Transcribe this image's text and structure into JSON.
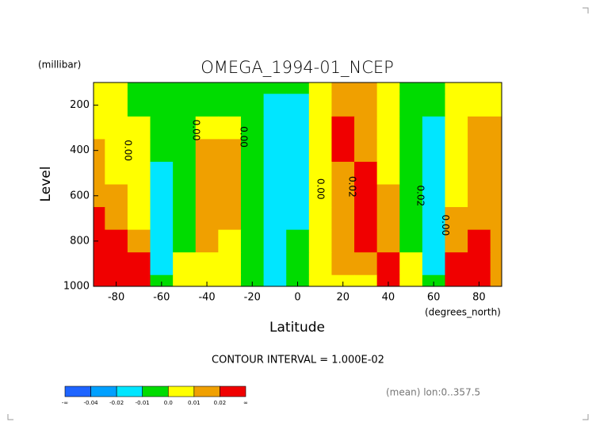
{
  "chart_data": {
    "type": "contour",
    "title": "OMEGA_1994-01_NCEP",
    "y_unit": "(millibar)",
    "ylabel": "Level",
    "xlabel": "Latitude",
    "x_unit": "(degrees_north)",
    "xlim": [
      -90,
      90
    ],
    "xticks": [
      -80,
      -60,
      -40,
      -20,
      0,
      20,
      40,
      60,
      80
    ],
    "ylim": [
      1000,
      100
    ],
    "yticks": [
      200,
      400,
      600,
      800,
      1000
    ],
    "x": [
      -90,
      -80,
      -70,
      -60,
      -50,
      -40,
      -30,
      -20,
      -10,
      0,
      10,
      20,
      30,
      40,
      50,
      60,
      70,
      80,
      90
    ],
    "y": [
      100,
      200,
      300,
      400,
      500,
      600,
      700,
      800,
      900,
      1000
    ],
    "z": [
      [
        0.005,
        0.005,
        -0.005,
        -0.005,
        -0.005,
        -0.005,
        -0.005,
        -0.005,
        -0.005,
        -0.005,
        0.005,
        0.015,
        0.015,
        0.005,
        -0.005,
        -0.005,
        0.005,
        0.005,
        0.005
      ],
      [
        0.005,
        0.005,
        -0.005,
        -0.005,
        -0.005,
        -0.005,
        -0.005,
        -0.005,
        -0.015,
        -0.015,
        0.005,
        0.015,
        0.015,
        0.005,
        -0.005,
        -0.005,
        0.005,
        0.005,
        0.005
      ],
      [
        0.005,
        0.005,
        0.005,
        -0.005,
        -0.005,
        0.005,
        0.005,
        -0.005,
        -0.015,
        -0.015,
        0.005,
        0.025,
        0.015,
        0.005,
        -0.005,
        -0.015,
        0.005,
        0.015,
        0.015
      ],
      [
        0.015,
        0.005,
        0.005,
        -0.005,
        -0.005,
        0.015,
        0.015,
        -0.005,
        -0.015,
        -0.015,
        0.005,
        0.025,
        0.015,
        0.005,
        -0.005,
        -0.015,
        0.005,
        0.015,
        0.015
      ],
      [
        0.015,
        0.005,
        0.005,
        -0.015,
        -0.005,
        0.015,
        0.015,
        -0.005,
        -0.015,
        -0.015,
        0.005,
        0.015,
        0.025,
        0.005,
        -0.005,
        -0.015,
        0.005,
        0.015,
        0.015
      ],
      [
        0.015,
        0.015,
        0.005,
        -0.015,
        -0.005,
        0.015,
        0.015,
        -0.005,
        -0.015,
        -0.015,
        0.005,
        0.015,
        0.025,
        0.015,
        -0.005,
        -0.015,
        0.005,
        0.015,
        0.015
      ],
      [
        0.025,
        0.015,
        0.005,
        -0.015,
        -0.005,
        0.015,
        0.015,
        -0.005,
        -0.015,
        -0.015,
        0.005,
        0.015,
        0.025,
        0.015,
        -0.005,
        -0.015,
        0.015,
        0.015,
        0.015
      ],
      [
        0.025,
        0.025,
        0.015,
        -0.015,
        -0.005,
        0.015,
        0.005,
        -0.005,
        -0.015,
        -0.005,
        0.005,
        0.015,
        0.025,
        0.015,
        -0.005,
        -0.015,
        0.015,
        0.025,
        0.015
      ],
      [
        0.025,
        0.025,
        0.025,
        -0.015,
        0.005,
        0.005,
        0.005,
        -0.005,
        -0.015,
        -0.005,
        0.005,
        0.015,
        0.015,
        0.025,
        0.005,
        -0.015,
        0.025,
        0.025,
        0.015
      ],
      [
        0.025,
        0.025,
        0.025,
        -0.005,
        0.005,
        0.005,
        0.005,
        -0.005,
        -0.015,
        -0.005,
        0.005,
        0.005,
        0.005,
        0.025,
        0.005,
        -0.005,
        0.025,
        0.025,
        0.015
      ]
    ],
    "contour_labels": [
      {
        "text": "0.00",
        "x": -75,
        "y": 400
      },
      {
        "text": "0.00",
        "x": -45,
        "y": 310
      },
      {
        "text": "0.00",
        "x": -24,
        "y": 340
      },
      {
        "text": "0.00",
        "x": 10,
        "y": 570
      },
      {
        "text": "0.02",
        "x": 24,
        "y": 560
      },
      {
        "text": "0.02",
        "x": 54,
        "y": 600
      },
      {
        "text": "0.00",
        "x": 65,
        "y": 730
      }
    ],
    "colorbar": {
      "ticks": [
        -0.04,
        -0.02,
        -0.01,
        {
          "value": 0,
          "label": "0.0"
        },
        0.01,
        0.02
      ],
      "end_labels": [
        "-∞",
        "∞"
      ],
      "colors": [
        "#1e64ff",
        "#00a0ff",
        "#00e6ff",
        "#00dc00",
        "#ffff00",
        "#f0a000",
        "#f00000"
      ]
    },
    "footer": "CONTOUR INTERVAL = 1.000E-02",
    "note": "(mean) lon:0..357.5"
  }
}
